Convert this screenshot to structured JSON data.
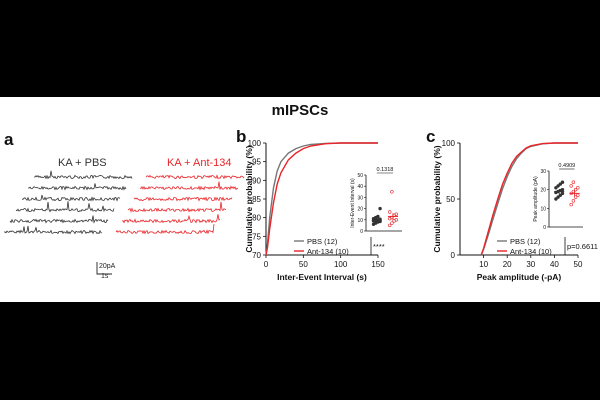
{
  "figure": {
    "title": "mIPSCs",
    "panel_a": {
      "letter": "a",
      "conditions": [
        {
          "label": "KA + PBS",
          "color": "#333333"
        },
        {
          "label": "KA + Ant-134",
          "color": "#e8252a"
        }
      ],
      "scale_amplitude": "20pA",
      "scale_time": "1s"
    },
    "colors": {
      "pbs": "#333333",
      "ant": "#e8252a",
      "pbs_line": "#777777"
    }
  },
  "chart_data": [
    {
      "panel": "b",
      "type": "line",
      "xlabel": "Inter-Event Interval (s)",
      "ylabel": "Cumulative probability (%)",
      "xlim": [
        0,
        150
      ],
      "ylim": [
        70,
        100
      ],
      "xticks": [
        "0",
        "50",
        "100",
        "150"
      ],
      "yticks": [
        "70",
        "75",
        "80",
        "85",
        "90",
        "95",
        "100"
      ],
      "series": [
        {
          "name": "PBS (12)",
          "color": "#777777",
          "x": [
            0,
            2,
            5,
            10,
            15,
            20,
            30,
            40,
            50,
            60,
            80,
            100,
            120,
            150
          ],
          "y": [
            70,
            73,
            80,
            88,
            92.5,
            95,
            97.3,
            98.5,
            99.2,
            99.6,
            99.9,
            100,
            100,
            100
          ]
        },
        {
          "name": "Ant-134 (10)",
          "color": "#e8252a",
          "x": [
            0,
            2,
            5,
            10,
            15,
            20,
            30,
            40,
            50,
            60,
            80,
            100,
            120,
            150
          ],
          "y": [
            70,
            72,
            77,
            84,
            89,
            92,
            95.5,
            97.3,
            98.5,
            99.2,
            99.8,
            100,
            100,
            100
          ]
        }
      ],
      "significance": "****",
      "inset": {
        "ylabel": "Inter-Event Interval (s)",
        "ylim": [
          0,
          50
        ],
        "yticks": [
          "0",
          "10",
          "20",
          "30",
          "40",
          "50"
        ],
        "pvalue": "0.1318",
        "groups": [
          {
            "name": "PBS",
            "color": "#333333",
            "mean": 9.5,
            "sem": 1.8,
            "points": [
              6,
              7,
              8,
              8.5,
              9,
              9.5,
              10,
              10.5,
              11,
              12,
              13,
              20
            ]
          },
          {
            "name": "Ant-134",
            "color": "#e8252a",
            "mean": 13,
            "sem": 3,
            "points": [
              5,
              7,
              9,
              10,
              11,
              12,
              14,
              15,
              17,
              35
            ]
          }
        ]
      }
    },
    {
      "panel": "c",
      "type": "line",
      "xlabel": "Peak amplitude (-pA)",
      "ylabel": "Cumulative probability (%)",
      "xlim": [
        0,
        50
      ],
      "ylim": [
        0,
        100
      ],
      "xticks": [
        "10",
        "20",
        "30",
        "40",
        "50"
      ],
      "yticks": [
        "0",
        "50",
        "100"
      ],
      "series": [
        {
          "name": "PBS (12)",
          "color": "#777777",
          "x": [
            9,
            10,
            12,
            14,
            16,
            18,
            20,
            22,
            24,
            26,
            28,
            30,
            35,
            40,
            50
          ],
          "y": [
            0,
            5,
            18,
            32,
            46,
            59,
            70,
            79,
            86,
            91,
            95,
            97,
            99.3,
            100,
            100
          ]
        },
        {
          "name": "Ant-134 (10)",
          "color": "#e8252a",
          "x": [
            9,
            10,
            12,
            14,
            16,
            18,
            20,
            22,
            24,
            26,
            28,
            30,
            35,
            40,
            50
          ],
          "y": [
            0,
            6,
            21,
            36,
            50,
            63,
            73,
            82,
            88,
            92,
            95.5,
            97.5,
            99.5,
            100,
            100
          ]
        }
      ],
      "significance": "p=0.6611",
      "inset": {
        "ylabel": "Peak amplitude (pA)",
        "ylim": [
          0,
          30
        ],
        "yticks": [
          "0",
          "10",
          "20",
          "30"
        ],
        "pvalue": "0.4909",
        "groups": [
          {
            "name": "PBS",
            "color": "#333333",
            "mean": 19,
            "sem": 1.3,
            "points": [
              15,
              16,
              17,
              18,
              18.5,
              19,
              19.5,
              20,
              21,
              22,
              23,
              24
            ]
          },
          {
            "name": "Ant-134",
            "color": "#e8252a",
            "mean": 18,
            "sem": 1.6,
            "points": [
              12,
              14,
              16,
              17,
              18,
              19,
              20,
              21,
              22,
              24
            ]
          }
        ]
      }
    }
  ]
}
